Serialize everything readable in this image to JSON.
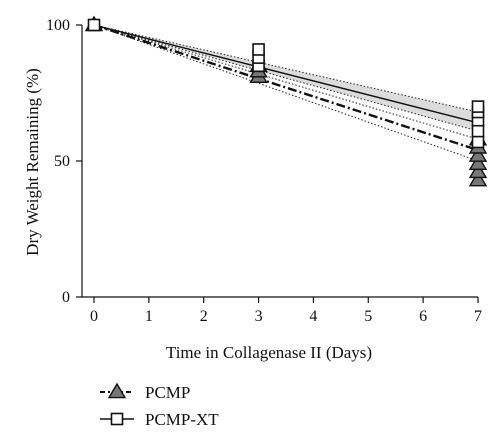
{
  "chart_data": {
    "type": "scatter",
    "xlabel": "Time in Collagenase II (Days)",
    "ylabel": "Dry Weight Remaining (%)",
    "xlim": [
      0,
      7
    ],
    "ylim": [
      0,
      100
    ],
    "xticks": [
      0,
      1,
      2,
      3,
      4,
      5,
      6,
      7
    ],
    "yticks": [
      0,
      50,
      100
    ],
    "grid": false,
    "legend_position": "bottom-left",
    "series": [
      {
        "name": "PCMP",
        "marker": "triangle",
        "line_style": "dash-dot",
        "color": "#555555",
        "points": [
          {
            "x": 0,
            "y": 100
          },
          {
            "x": 3,
            "y": 81
          },
          {
            "x": 3,
            "y": 83
          },
          {
            "x": 3,
            "y": 85
          },
          {
            "x": 7,
            "y": 43
          },
          {
            "x": 7,
            "y": 46
          },
          {
            "x": 7,
            "y": 49
          },
          {
            "x": 7,
            "y": 52
          },
          {
            "x": 7,
            "y": 55
          },
          {
            "x": 7,
            "y": 58
          }
        ],
        "fit": {
          "intercept": 100,
          "slope": -6.57
        },
        "ci": {
          "upper_end": 58,
          "lower_end": 50
        }
      },
      {
        "name": "PCMP-XT",
        "marker": "square",
        "line_style": "solid",
        "color": "#ffffff",
        "points": [
          {
            "x": 0,
            "y": 100
          },
          {
            "x": 3,
            "y": 85
          },
          {
            "x": 3,
            "y": 88
          },
          {
            "x": 3,
            "y": 91
          },
          {
            "x": 7,
            "y": 57
          },
          {
            "x": 7,
            "y": 61
          },
          {
            "x": 7,
            "y": 65
          },
          {
            "x": 7,
            "y": 68
          },
          {
            "x": 7,
            "y": 70
          }
        ],
        "fit": {
          "intercept": 100,
          "slope": -5.14
        },
        "ci": {
          "upper_end": 68,
          "lower_end": 61
        }
      }
    ]
  }
}
